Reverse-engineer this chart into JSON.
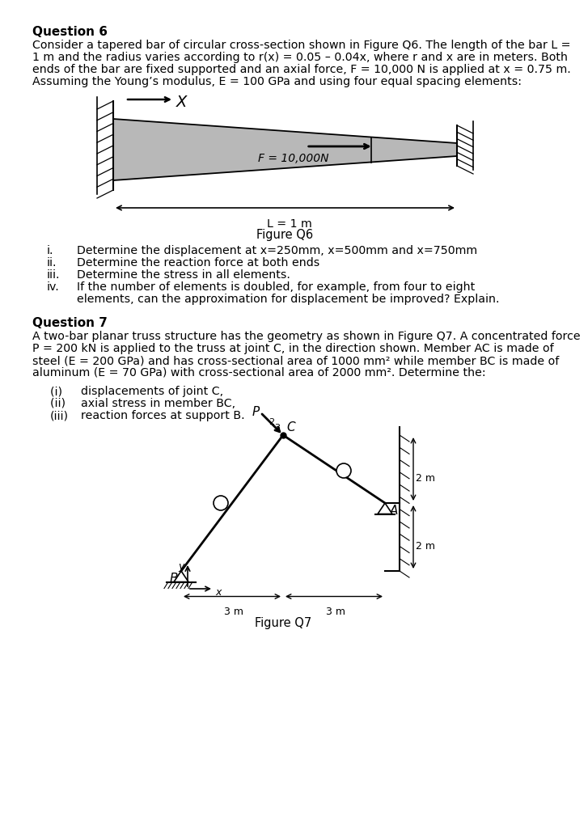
{
  "bg_color": "#ffffff",
  "q6_title": "Question 6",
  "q6_body_lines": [
    "Consider a tapered bar of circular cross-section shown in Figure Q6. The length of the bar L =",
    "1 m and the radius varies according to r(x) = 0.05 – 0.04x, where r and x are in meters. Both",
    "ends of the bar are fixed supported and an axial force, F = 10,000 N is applied at x = 0.75 m.",
    "Assuming the Young’s modulus, E = 100 GPa and using four equal spacing elements:"
  ],
  "q6_items": [
    [
      "i.",
      "Determine the displacement at x=250mm, x=500mm and x=750mm"
    ],
    [
      "ii.",
      "Determine the reaction force at both ends"
    ],
    [
      "iii.",
      "Determine the stress in all elements."
    ],
    [
      "iv.",
      "If the number of elements is doubled, for example, from four to eight",
      "elements, can the approximation for displacement be improved? Explain."
    ]
  ],
  "fig_q6_caption": "Figure Q6",
  "q7_title": "Question 7",
  "q7_body_lines": [
    "A two-bar planar truss structure has the geometry as shown in Figure Q7. A concentrated force",
    "P = 200 kN is applied to the truss at joint C, in the direction shown. Member AC is made of",
    "steel (E = 200 GPa) and has cross-sectional area of 1000 mm² while member BC is made of",
    "aluminum (E = 70 GPa) with cross-sectional area of 2000 mm². Determine the:"
  ],
  "q7_items": [
    [
      "(i)  ",
      "displacements of joint C,"
    ],
    [
      "(ii) ",
      "axial stress in member BC,"
    ],
    [
      "(iii)",
      "reaction forces at support B."
    ]
  ],
  "fig_q7_caption": "Figure Q7"
}
